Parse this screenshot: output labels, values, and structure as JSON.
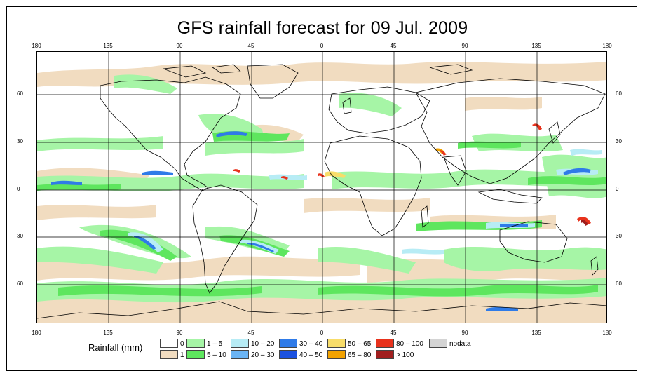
{
  "title": "GFS rainfall forecast for 09 Jul. 2009",
  "lon_ticks": [
    "180",
    "135",
    "90",
    "45",
    "0",
    "45",
    "90",
    "135",
    "180"
  ],
  "lat_ticks": [
    "60",
    "30",
    "0",
    "30",
    "60"
  ],
  "legend": {
    "title": "Rainfall (mm)",
    "items": [
      {
        "label": "0",
        "color": "#ffffff"
      },
      {
        "label": "1",
        "color": "#f1dcc0"
      },
      {
        "label": "1 – 5",
        "color": "#a6f5a6"
      },
      {
        "label": "5 – 10",
        "color": "#5ee65e"
      },
      {
        "label": "10 – 20",
        "color": "#b7ecf5"
      },
      {
        "label": "20 – 30",
        "color": "#6ab4f4"
      },
      {
        "label": "30 – 40",
        "color": "#2f7be8"
      },
      {
        "label": "40 – 50",
        "color": "#1c52e0"
      },
      {
        "label": "50 – 65",
        "color": "#f8dd6a"
      },
      {
        "label": "65 – 80",
        "color": "#f2a200"
      },
      {
        "label": "80 – 100",
        "color": "#e8321c"
      },
      {
        "label": "> 100",
        "color": "#a01e1e"
      },
      {
        "label": "nodata",
        "color": "#d4d4d4"
      }
    ]
  }
}
